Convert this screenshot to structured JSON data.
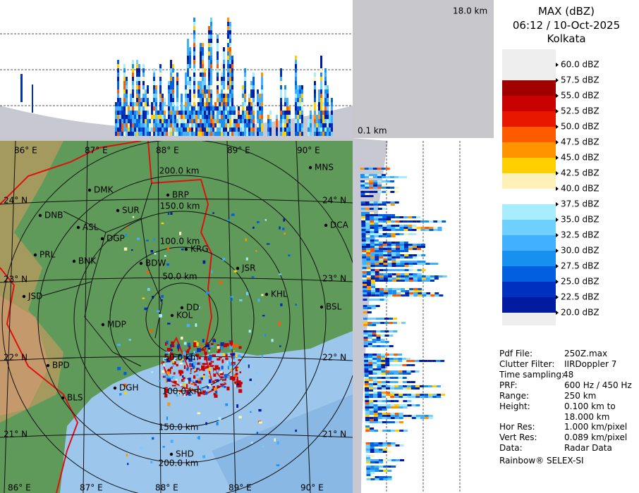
{
  "header": {
    "title": "MAX (dBZ)",
    "datetime": "06:12 / 10-Oct-2025",
    "site": "Kolkata"
  },
  "height_labels": {
    "top": "18.0 km",
    "bottom": "0.1 km"
  },
  "legend": [
    {
      "label": "60.0 dBZ",
      "color": "#ffffff"
    },
    {
      "label": "57.5 dBZ",
      "color": "#a00000"
    },
    {
      "label": "55.0 dBZ",
      "color": "#c80000"
    },
    {
      "label": "52.5 dBZ",
      "color": "#e81800"
    },
    {
      "label": "50.0 dBZ",
      "color": "#ff5a00"
    },
    {
      "label": "47.5 dBZ",
      "color": "#ff9400"
    },
    {
      "label": "45.0 dBZ",
      "color": "#ffd000"
    },
    {
      "label": "42.5 dBZ",
      "color": "#fff2b8"
    },
    {
      "label": "40.0 dBZ",
      "color": "#ffffff"
    },
    {
      "label": "37.5 dBZ",
      "color": "#a8ecff"
    },
    {
      "label": "35.0 dBZ",
      "color": "#70d0ff"
    },
    {
      "label": "32.5 dBZ",
      "color": "#40b0ff"
    },
    {
      "label": "30.0 dBZ",
      "color": "#1890f0"
    },
    {
      "label": "27.5 dBZ",
      "color": "#0060e0"
    },
    {
      "label": "25.0 dBZ",
      "color": "#0030c0"
    },
    {
      "label": "22.5 dBZ",
      "color": "#001aa0"
    },
    {
      "label": "20.0 dBZ",
      "color": "#ffffff"
    }
  ],
  "info": [
    {
      "key": "Pdf File:",
      "value": "250Z.max"
    },
    {
      "key": "Clutter Filter:",
      "value": "IIRDoppler 7"
    },
    {
      "key": "Time sampling:",
      "value": "48"
    },
    {
      "key": "PRF:",
      "value": "600 Hz / 450 Hz"
    },
    {
      "key": "Range:",
      "value": "250 km"
    },
    {
      "key": "Height:",
      "value": "0.100 km to 18.000 km"
    },
    {
      "key": "Hor Res:",
      "value": "1.000 km/pixel"
    },
    {
      "key": "Vert Res:",
      "value": "0.089 km/pixel"
    },
    {
      "key": "Data:",
      "value": "Radar Data"
    }
  ],
  "footer": "Rainbow® SELEX-SI",
  "map": {
    "longitudes": [
      "86° E",
      "87° E",
      "88° E",
      "89° E",
      "90° E"
    ],
    "latitudes": [
      "24° N",
      "23° N",
      "22° N",
      "21° N"
    ],
    "range_rings": [
      "50.0 km",
      "100.0 km",
      "150.0 km",
      "200.0 km"
    ],
    "cities": [
      "MNS",
      "DMK",
      "BRP",
      "DNB",
      "SUR",
      "ASL",
      "DGP",
      "DCA",
      "PRL",
      "BNK",
      "KRG",
      "BDW",
      "JSR",
      "KHL",
      "JSD",
      "BSL",
      "MDP",
      "DD",
      "KOL",
      "BPD",
      "DGH",
      "BLS",
      "SHD"
    ]
  }
}
